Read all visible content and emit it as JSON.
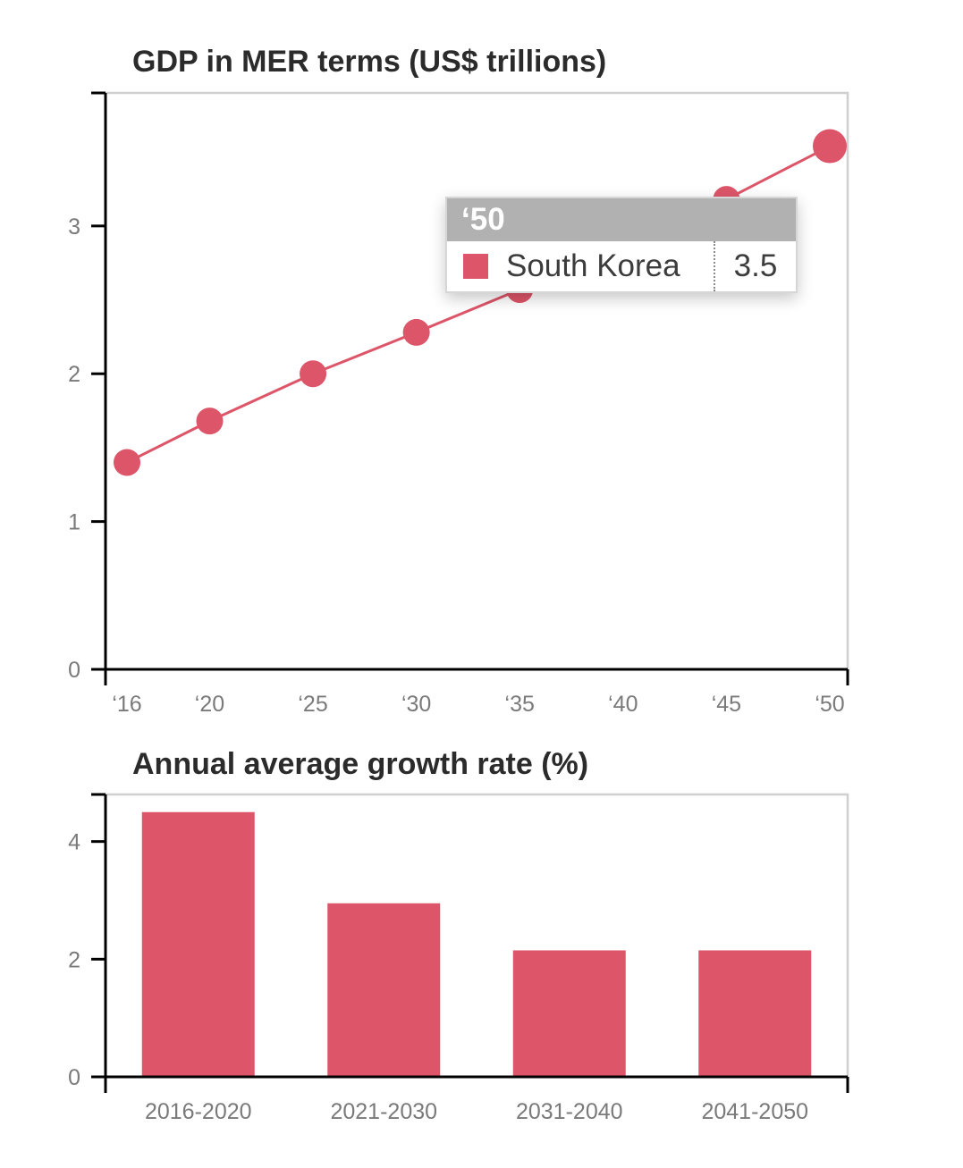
{
  "colors": {
    "series": "#dd5569",
    "axis": "#000000",
    "frame": "#cfcfcf",
    "tick_text": "#7a7a7a",
    "title_text": "#2b2b2b",
    "tooltip_header_bg": "#b1b1b1"
  },
  "tooltip": {
    "header": "‘50",
    "series_name": "South Korea",
    "value": "3.5"
  },
  "chart_data": [
    {
      "type": "line",
      "title": "GDP in MER terms (US$ trillions)",
      "x": [
        "‘16",
        "‘20",
        "‘25",
        "‘30",
        "‘35",
        "‘40",
        "‘45",
        "‘50"
      ],
      "x_years": [
        2016,
        2020,
        2025,
        2030,
        2035,
        2040,
        2045,
        2050
      ],
      "series": [
        {
          "name": "South Korea",
          "values": [
            1.4,
            1.68,
            2.0,
            2.28,
            2.57,
            2.86,
            3.18,
            3.54
          ]
        }
      ],
      "ylim": [
        0,
        3.9
      ],
      "yticks": [
        0,
        1,
        2,
        3
      ],
      "grid": false
    },
    {
      "type": "bar",
      "title": "Annual average growth rate (%)",
      "categories": [
        "2016-2020",
        "2021-2030",
        "2031-2040",
        "2041-2050"
      ],
      "values": [
        4.5,
        2.95,
        2.15,
        2.15
      ],
      "ylim": [
        0,
        4.8
      ],
      "yticks": [
        0,
        2,
        4
      ],
      "grid": false
    }
  ]
}
